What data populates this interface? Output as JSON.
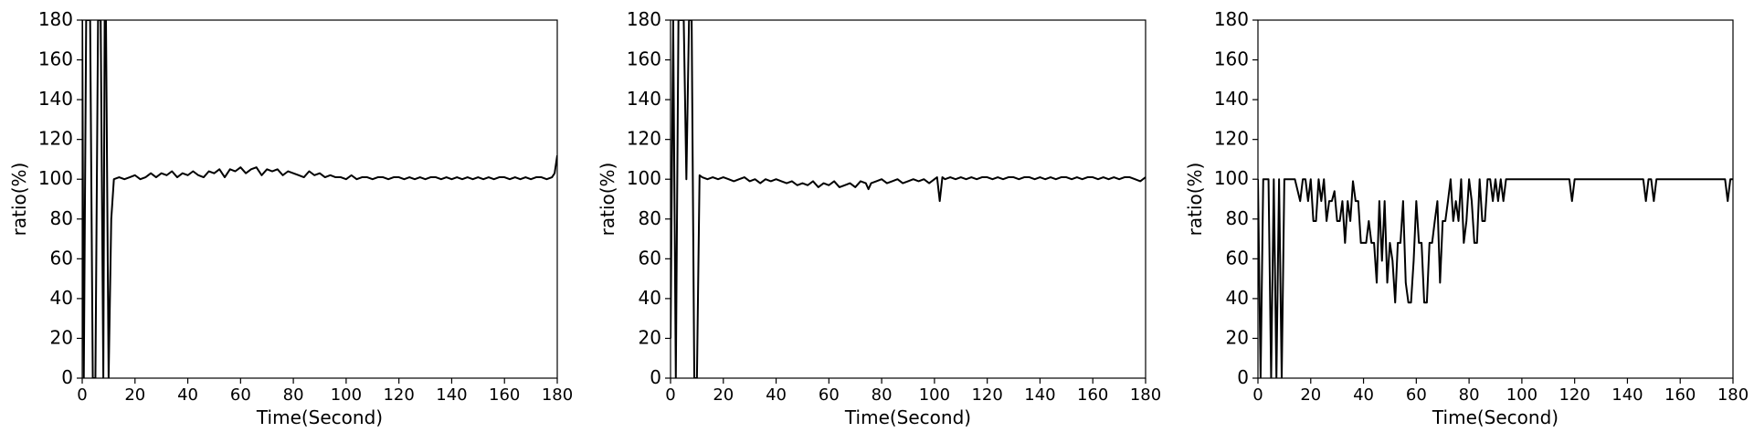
{
  "chart_data": [
    {
      "type": "line",
      "xlabel": "Time(Second)",
      "ylabel": "ratio(%)",
      "xlim": [
        0,
        180
      ],
      "ylim": [
        0,
        180
      ],
      "xticks": [
        0,
        20,
        40,
        60,
        80,
        100,
        120,
        140,
        160,
        180
      ],
      "yticks": [
        0,
        20,
        40,
        60,
        80,
        100,
        120,
        140,
        160,
        180
      ],
      "series": [
        {
          "color": "#000000",
          "x": [
            0,
            0.6,
            1.5,
            3,
            4,
            5,
            6,
            7,
            8,
            8.5,
            9,
            10,
            11,
            12,
            14,
            16,
            18,
            20,
            22,
            24,
            26,
            28,
            30,
            32,
            34,
            36,
            38,
            40,
            42,
            44,
            46,
            48,
            50,
            52,
            54,
            56,
            58,
            60,
            62,
            64,
            66,
            68,
            70,
            72,
            74,
            76,
            78,
            80,
            82,
            84,
            86,
            88,
            90,
            92,
            94,
            96,
            98,
            100,
            102,
            104,
            106,
            108,
            110,
            112,
            114,
            116,
            118,
            120,
            122,
            124,
            126,
            128,
            130,
            132,
            134,
            136,
            138,
            140,
            142,
            144,
            146,
            148,
            150,
            152,
            154,
            156,
            158,
            160,
            162,
            164,
            166,
            168,
            170,
            172,
            174,
            176,
            178,
            179,
            180
          ],
          "y": [
            180,
            0,
            180,
            180,
            0,
            0,
            180,
            180,
            0,
            180,
            180,
            0,
            80,
            100,
            101,
            100,
            101,
            102,
            100,
            101,
            103,
            101,
            103,
            102,
            104,
            101,
            103,
            102,
            104,
            102,
            101,
            104,
            103,
            105,
            101,
            105,
            104,
            106,
            103,
            105,
            106,
            102,
            105,
            104,
            105,
            102,
            104,
            103,
            102,
            101,
            104,
            102,
            103,
            101,
            102,
            101,
            101,
            100,
            102,
            100,
            101,
            101,
            100,
            101,
            101,
            100,
            101,
            101,
            100,
            101,
            100,
            101,
            100,
            101,
            101,
            100,
            101,
            100,
            101,
            100,
            101,
            100,
            101,
            100,
            101,
            100,
            101,
            101,
            100,
            101,
            100,
            101,
            100,
            101,
            101,
            100,
            101,
            103,
            112
          ]
        }
      ]
    },
    {
      "type": "line",
      "xlabel": "Time(Second)",
      "ylabel": "ratio(%)",
      "xlim": [
        0,
        180
      ],
      "ylim": [
        0,
        180
      ],
      "xticks": [
        0,
        20,
        40,
        60,
        80,
        100,
        120,
        140,
        160,
        180
      ],
      "yticks": [
        0,
        20,
        40,
        60,
        80,
        100,
        120,
        140,
        160,
        180
      ],
      "series": [
        {
          "color": "#000000",
          "x": [
            0,
            1,
            2,
            3,
            4,
            5,
            6,
            7,
            8,
            9,
            10,
            11,
            12,
            14,
            16,
            18,
            20,
            22,
            24,
            26,
            28,
            30,
            32,
            34,
            36,
            38,
            40,
            42,
            44,
            46,
            48,
            50,
            52,
            54,
            56,
            58,
            60,
            62,
            64,
            66,
            68,
            70,
            72,
            74,
            75,
            76,
            78,
            80,
            82,
            84,
            86,
            88,
            90,
            92,
            94,
            96,
            98,
            100,
            101,
            102,
            103,
            104,
            106,
            108,
            110,
            112,
            114,
            116,
            118,
            120,
            122,
            124,
            126,
            128,
            130,
            132,
            134,
            136,
            138,
            140,
            142,
            144,
            146,
            148,
            150,
            152,
            154,
            156,
            158,
            160,
            162,
            164,
            166,
            168,
            170,
            172,
            174,
            176,
            178,
            180
          ],
          "y": [
            20,
            180,
            0,
            180,
            180,
            180,
            100,
            180,
            180,
            0,
            0,
            102,
            101,
            100,
            101,
            100,
            101,
            100,
            99,
            100,
            101,
            99,
            100,
            98,
            100,
            99,
            100,
            99,
            98,
            99,
            97,
            98,
            97,
            99,
            96,
            98,
            97,
            99,
            96,
            97,
            98,
            96,
            99,
            98,
            95,
            98,
            99,
            100,
            98,
            99,
            100,
            98,
            99,
            100,
            99,
            100,
            98,
            100,
            101,
            89,
            101,
            100,
            101,
            100,
            101,
            100,
            101,
            100,
            101,
            101,
            100,
            101,
            100,
            101,
            101,
            100,
            101,
            101,
            100,
            101,
            100,
            101,
            100,
            101,
            101,
            100,
            101,
            100,
            101,
            101,
            100,
            101,
            100,
            101,
            100,
            101,
            101,
            100,
            99,
            101
          ]
        }
      ]
    },
    {
      "type": "line",
      "xlabel": "Time(Second)",
      "ylabel": "ratio(%)",
      "xlim": [
        0,
        180
      ],
      "ylim": [
        0,
        180
      ],
      "xticks": [
        0,
        20,
        40,
        60,
        80,
        100,
        120,
        140,
        160,
        180
      ],
      "yticks": [
        0,
        20,
        40,
        60,
        80,
        100,
        120,
        140,
        160,
        180
      ],
      "series": [
        {
          "color": "#000000",
          "x": [
            0,
            1,
            2,
            4,
            5,
            6,
            7,
            8,
            9,
            10,
            11,
            12,
            14,
            16,
            17,
            18,
            19,
            20,
            21,
            22,
            23,
            24,
            25,
            26,
            27,
            28,
            29,
            30,
            31,
            32,
            33,
            34,
            35,
            36,
            37,
            38,
            39,
            40,
            41,
            42,
            43,
            44,
            45,
            46,
            47,
            48,
            49,
            50,
            51,
            52,
            53,
            54,
            55,
            56,
            57,
            58,
            59,
            60,
            61,
            62,
            63,
            64,
            65,
            66,
            67,
            68,
            69,
            70,
            71,
            72,
            73,
            74,
            75,
            76,
            77,
            78,
            79,
            80,
            81,
            82,
            83,
            84,
            85,
            86,
            87,
            88,
            89,
            90,
            91,
            92,
            93,
            94,
            95,
            96,
            97,
            98,
            99,
            100,
            101,
            102,
            104,
            106,
            108,
            110,
            112,
            114,
            116,
            118,
            119,
            120,
            121,
            122,
            124,
            126,
            128,
            130,
            132,
            134,
            136,
            138,
            140,
            142,
            144,
            146,
            147,
            148,
            149,
            150,
            151,
            152,
            154,
            156,
            158,
            160,
            162,
            164,
            166,
            168,
            170,
            172,
            174,
            176,
            177,
            178,
            179,
            180
          ],
          "y": [
            100,
            0,
            100,
            100,
            0,
            100,
            0,
            100,
            0,
            100,
            100,
            100,
            100,
            89,
            100,
            100,
            89,
            100,
            79,
            79,
            100,
            89,
            100,
            79,
            89,
            89,
            94,
            79,
            79,
            89,
            68,
            89,
            79,
            99,
            89,
            89,
            68,
            68,
            68,
            79,
            68,
            68,
            48,
            89,
            59,
            89,
            48,
            68,
            59,
            38,
            68,
            68,
            89,
            48,
            38,
            38,
            59,
            89,
            68,
            68,
            38,
            38,
            68,
            68,
            79,
            89,
            48,
            79,
            79,
            89,
            100,
            79,
            89,
            79,
            100,
            68,
            79,
            100,
            89,
            68,
            68,
            100,
            79,
            79,
            100,
            100,
            89,
            100,
            89,
            100,
            89,
            100,
            100,
            100,
            100,
            100,
            100,
            100,
            100,
            100,
            100,
            100,
            100,
            100,
            100,
            100,
            100,
            100,
            89,
            100,
            100,
            100,
            100,
            100,
            100,
            100,
            100,
            100,
            100,
            100,
            100,
            100,
            100,
            100,
            89,
            100,
            100,
            89,
            100,
            100,
            100,
            100,
            100,
            100,
            100,
            100,
            100,
            100,
            100,
            100,
            100,
            100,
            100,
            89,
            100,
            100
          ]
        }
      ]
    }
  ]
}
